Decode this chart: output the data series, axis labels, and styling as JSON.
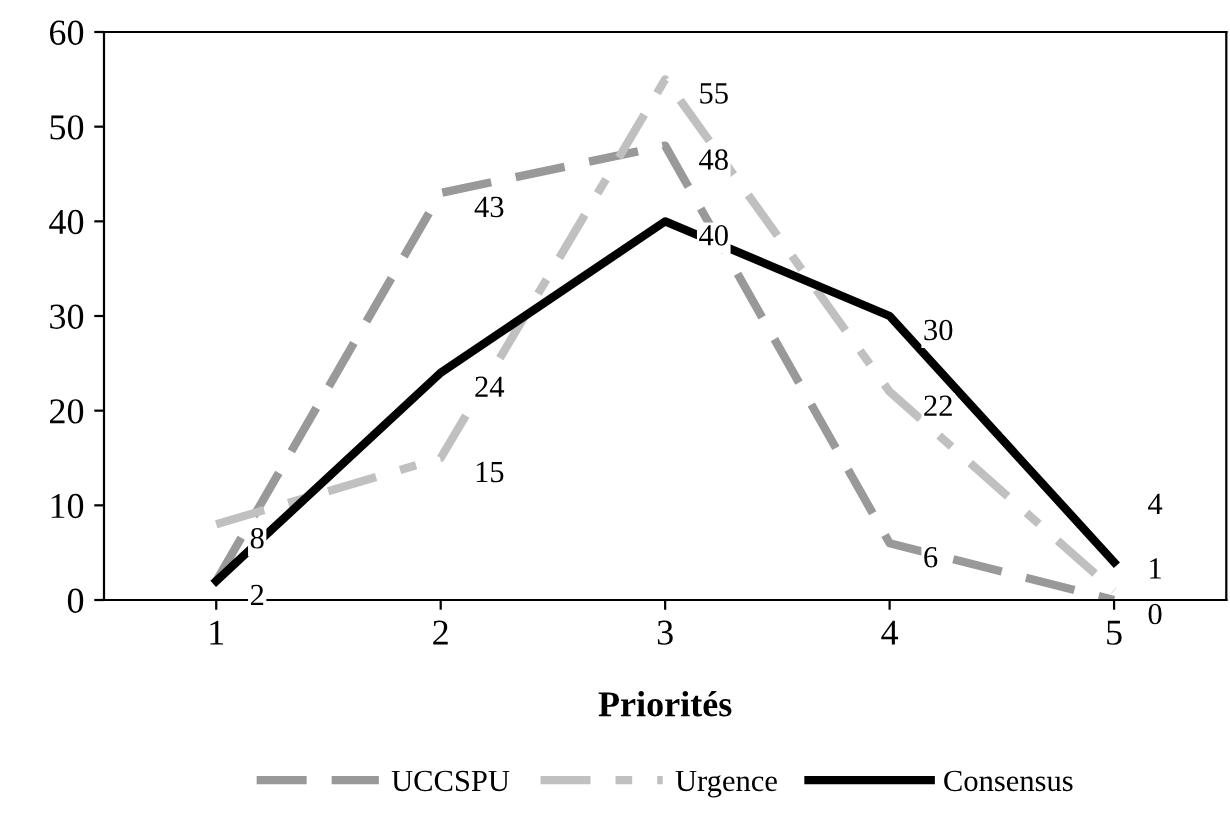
{
  "chart_data": {
    "type": "line",
    "xlabel": "Priorités",
    "categories": [
      "1",
      "2",
      "3",
      "4",
      "5"
    ],
    "series": [
      {
        "name": "UCCSPU",
        "color": "#999999",
        "line_style": "dashed",
        "values": [
          2,
          43,
          48,
          6,
          0
        ],
        "value_labels": [
          null,
          "43",
          "48",
          "6",
          "0"
        ]
      },
      {
        "name": "Urgence",
        "color": "#c0c0c0",
        "line_style": "dashed",
        "values": [
          8,
          15,
          55,
          22,
          1
        ],
        "value_labels": [
          "8",
          "15",
          "55",
          "22",
          "1"
        ]
      },
      {
        "name": "Consensus",
        "color": "#000000",
        "line_style": "solid",
        "values": [
          2,
          24,
          40,
          30,
          4
        ],
        "value_labels": [
          "2",
          "24",
          "40",
          "30",
          "4"
        ]
      }
    ],
    "ylim": [
      0,
      60
    ],
    "yticks": [
      0,
      10,
      20,
      30,
      40,
      50,
      60
    ],
    "grid": false,
    "legend": "bottom",
    "marker": "none"
  }
}
